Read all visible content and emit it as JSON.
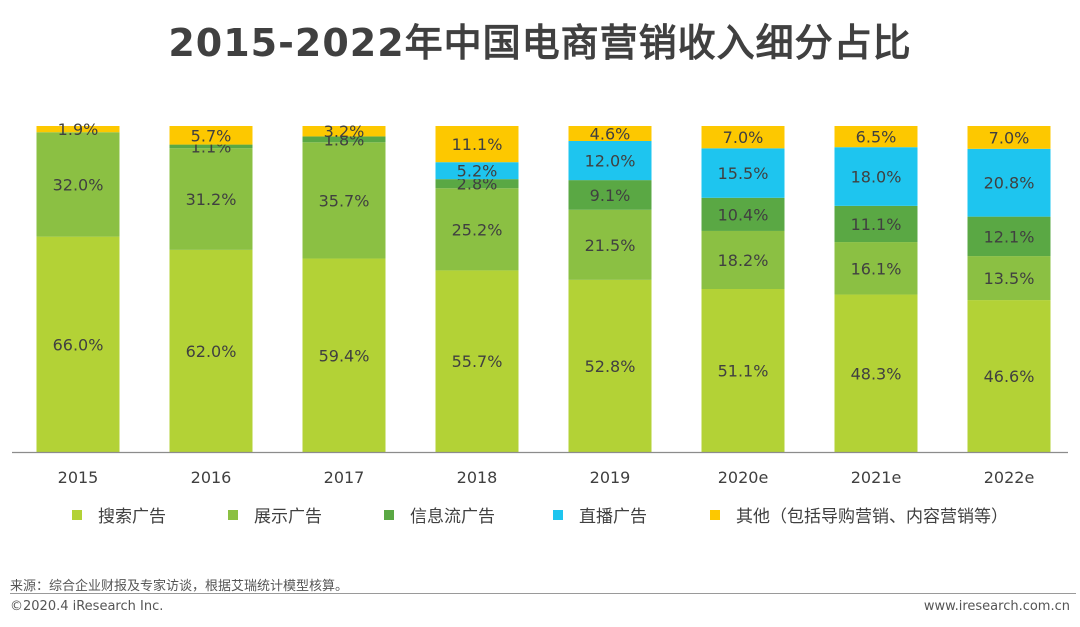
{
  "title": "2015-2022年中国电商营销收入细分占比",
  "chart_data": {
    "type": "bar",
    "stacked": true,
    "title": "2015-2022年中国电商营销收入细分占比",
    "xlabel": "",
    "ylabel": "",
    "ylim": [
      0,
      100
    ],
    "unit": "%",
    "categories": [
      "2015",
      "2016",
      "2017",
      "2018",
      "2019",
      "2020e",
      "2021e",
      "2022e"
    ],
    "series": [
      {
        "name": "搜索广告",
        "color": "#b3d236",
        "values": [
          66.0,
          62.0,
          59.4,
          55.7,
          52.8,
          51.1,
          48.3,
          46.6
        ],
        "labels": [
          "66.0%",
          "62.0%",
          "59.4%",
          "55.7%",
          "52.8%",
          "51.1%",
          "48.3%",
          "46.6%"
        ]
      },
      {
        "name": "展示广告",
        "color": "#8bc043",
        "values": [
          32.0,
          31.2,
          35.7,
          25.2,
          21.5,
          18.2,
          16.1,
          13.5
        ],
        "labels": [
          "32.0%",
          "31.2%",
          "35.7%",
          "25.2%",
          "21.5%",
          "18.2%",
          "16.1%",
          "13.5%"
        ]
      },
      {
        "name": "信息流广告",
        "color": "#5aa844",
        "values": [
          0,
          1.1,
          1.8,
          2.8,
          9.1,
          10.4,
          11.1,
          12.1
        ],
        "labels": [
          "",
          "1.1%",
          "1.8%",
          "2.8%",
          "9.1%",
          "10.4%",
          "11.1%",
          "12.1%"
        ]
      },
      {
        "name": "直播广告",
        "color": "#1ec5ef",
        "values": [
          0,
          0,
          0,
          5.2,
          12.0,
          15.5,
          18.0,
          20.8
        ],
        "labels": [
          "",
          "",
          "",
          "5.2%",
          "12.0%",
          "15.5%",
          "18.0%",
          "20.8%"
        ]
      },
      {
        "name": "其他（包括导购营销、内容营销等）",
        "color": "#fdc800",
        "values": [
          1.9,
          5.7,
          3.2,
          11.1,
          4.6,
          7.0,
          6.5,
          7.0
        ],
        "labels": [
          "1.9%",
          "5.7%",
          "3.2%",
          "11.1%",
          "4.6%",
          "7.0%",
          "6.5%",
          "7.0%"
        ]
      }
    ]
  },
  "source": "来源：综合企业财报及专家访谈，根据艾瑞统计模型核算。",
  "footer": {
    "left": "©2020.4 iResearch Inc.",
    "right": "www.iresearch.com.cn"
  }
}
